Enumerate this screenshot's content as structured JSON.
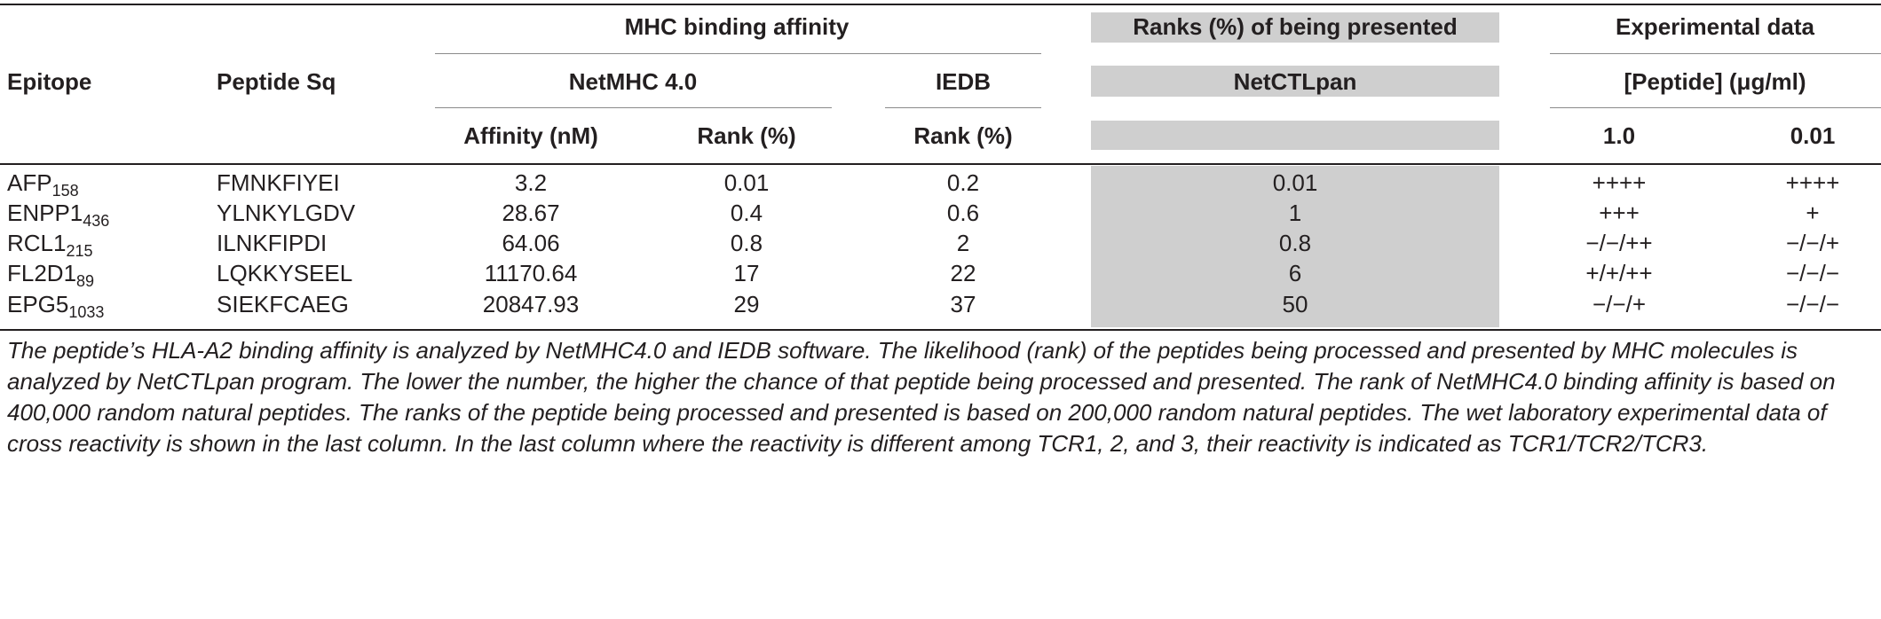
{
  "header": {
    "epitope": "Epitope",
    "peptide_sq": "Peptide Sq",
    "group_mhc": "MHC binding affinity",
    "group_ranks": "Ranks (%) of being presented",
    "group_experimental": "Experimental data",
    "netmhc": "NetMHC 4.0",
    "iedb": "IEDB",
    "netctlpan": "NetCTLpan",
    "peptide_conc": "[Peptide] (μg/ml)",
    "affinity_nm": "Affinity (nM)",
    "rank_netmhc": "Rank (%)",
    "rank_iedb": "Rank (%)",
    "conc_1": "1.0",
    "conc_2": "0.01"
  },
  "rows": [
    {
      "epitope": "AFP",
      "sub": "158",
      "peptide": "FMNKFIYEI",
      "affinity": "3.2",
      "rank_netmhc": "0.01",
      "rank_iedb": "0.2",
      "netctlpan": "0.01",
      "exp_1": "++++",
      "exp_2": "++++"
    },
    {
      "epitope": "ENPP1",
      "sub": "436",
      "peptide": "YLNKYLGDV",
      "affinity": "28.67",
      "rank_netmhc": "0.4",
      "rank_iedb": "0.6",
      "netctlpan": "1",
      "exp_1": "+++",
      "exp_2": "+"
    },
    {
      "epitope": "RCL1",
      "sub": "215",
      "peptide": "ILNKFIPDI",
      "affinity": "64.06",
      "rank_netmhc": "0.8",
      "rank_iedb": "2",
      "netctlpan": "0.8",
      "exp_1": "−/−/++",
      "exp_2": "−/−/+"
    },
    {
      "epitope": "FL2D1",
      "sub": "89",
      "peptide": "LQKKYSEEL",
      "affinity": "11170.64",
      "rank_netmhc": "17",
      "rank_iedb": "22",
      "netctlpan": "6",
      "exp_1": "+/+/++",
      "exp_2": "−/−/−"
    },
    {
      "epitope": "EPG5",
      "sub": "1033",
      "peptide": "SIEKFCAEG",
      "affinity": "20847.93",
      "rank_netmhc": "29",
      "rank_iedb": "37",
      "netctlpan": "50",
      "exp_1": "−/−/+",
      "exp_2": "−/−/−"
    }
  ],
  "caption": "The peptide’s HLA-A2 binding affinity is analyzed by NetMHC4.0 and IEDB software. The likelihood (rank) of the peptides being processed and presented by MHC molecules is analyzed by NetCTLpan program. The lower the number, the higher the chance of that peptide being processed and presented. The rank of NetMHC4.0 binding affinity is based on 400,000 random natural peptides. The ranks of the peptide being processed and presented is based on 200,000 random natural peptides. The wet laboratory experimental data of cross reactivity is shown in the last column. In the last column where the reactivity is different among TCR1, 2, and 3, their reactivity is indicated as TCR1/TCR2/TCR3.",
  "colors": {
    "shade": "#cfcfcf",
    "text": "#231f20",
    "rule": "#231f20"
  }
}
